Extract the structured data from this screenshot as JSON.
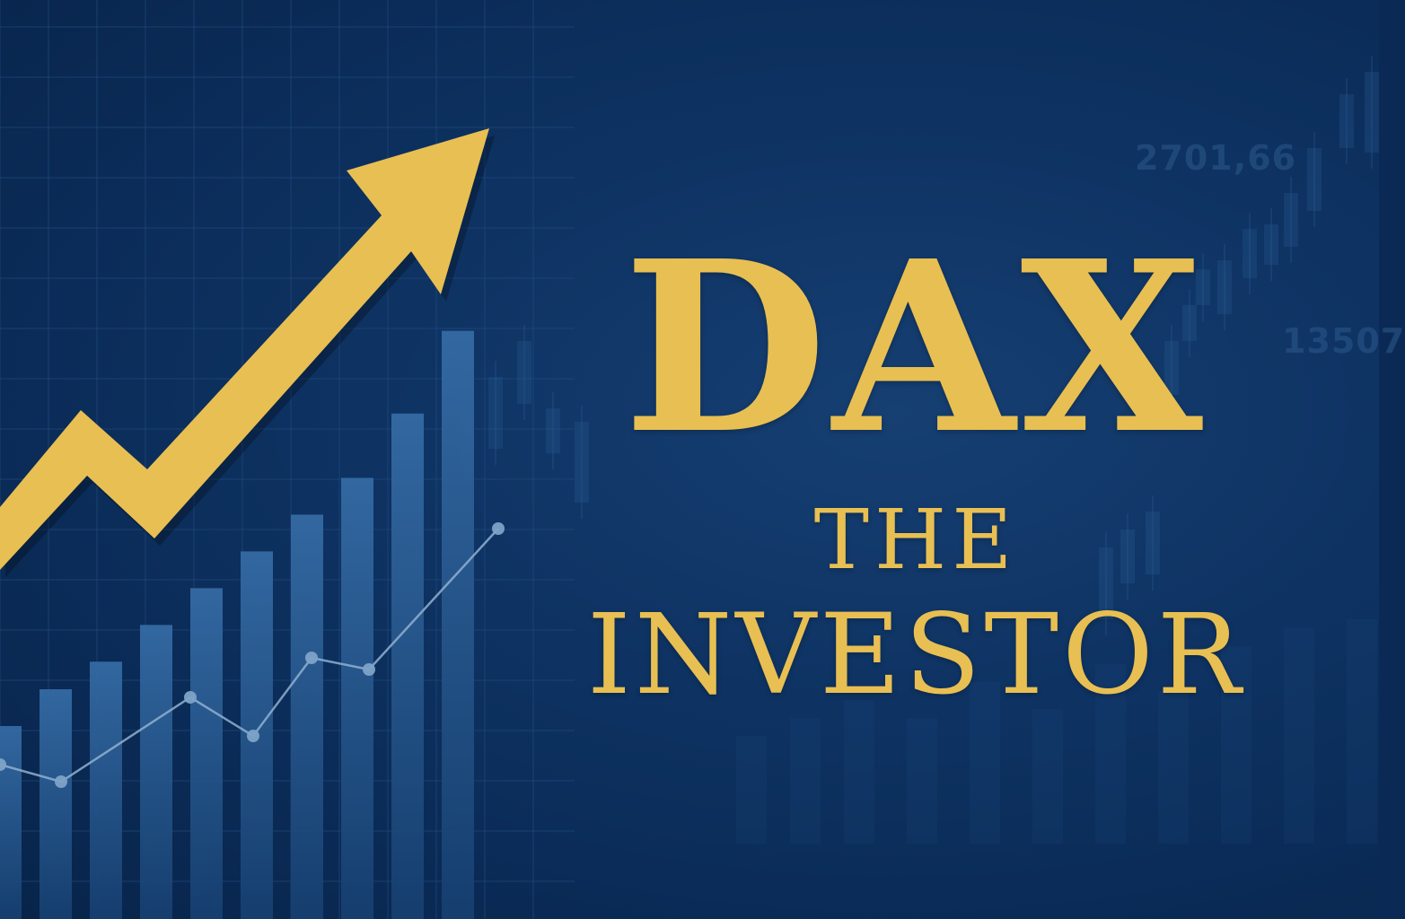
{
  "title": {
    "line1": "DAX",
    "line2": "THE",
    "line3": "INVESTOR"
  },
  "background_numbers": [
    "2701,66",
    "13507"
  ],
  "colors": {
    "background": "#0a2a55",
    "gold": "#e8bf52",
    "bars": "#2c5d94",
    "line": "#8fb0d0",
    "grid": "#1f4a7c"
  },
  "icons": [
    "rising-arrow-icon"
  ],
  "decor": {
    "bar_levels": [
      0.21,
      0.25,
      0.28,
      0.32,
      0.36,
      0.4,
      0.44,
      0.48,
      0.55,
      0.64
    ],
    "line_levels": [
      0.16,
      0.15,
      0.24,
      0.2,
      0.29,
      0.28,
      0.43
    ]
  }
}
